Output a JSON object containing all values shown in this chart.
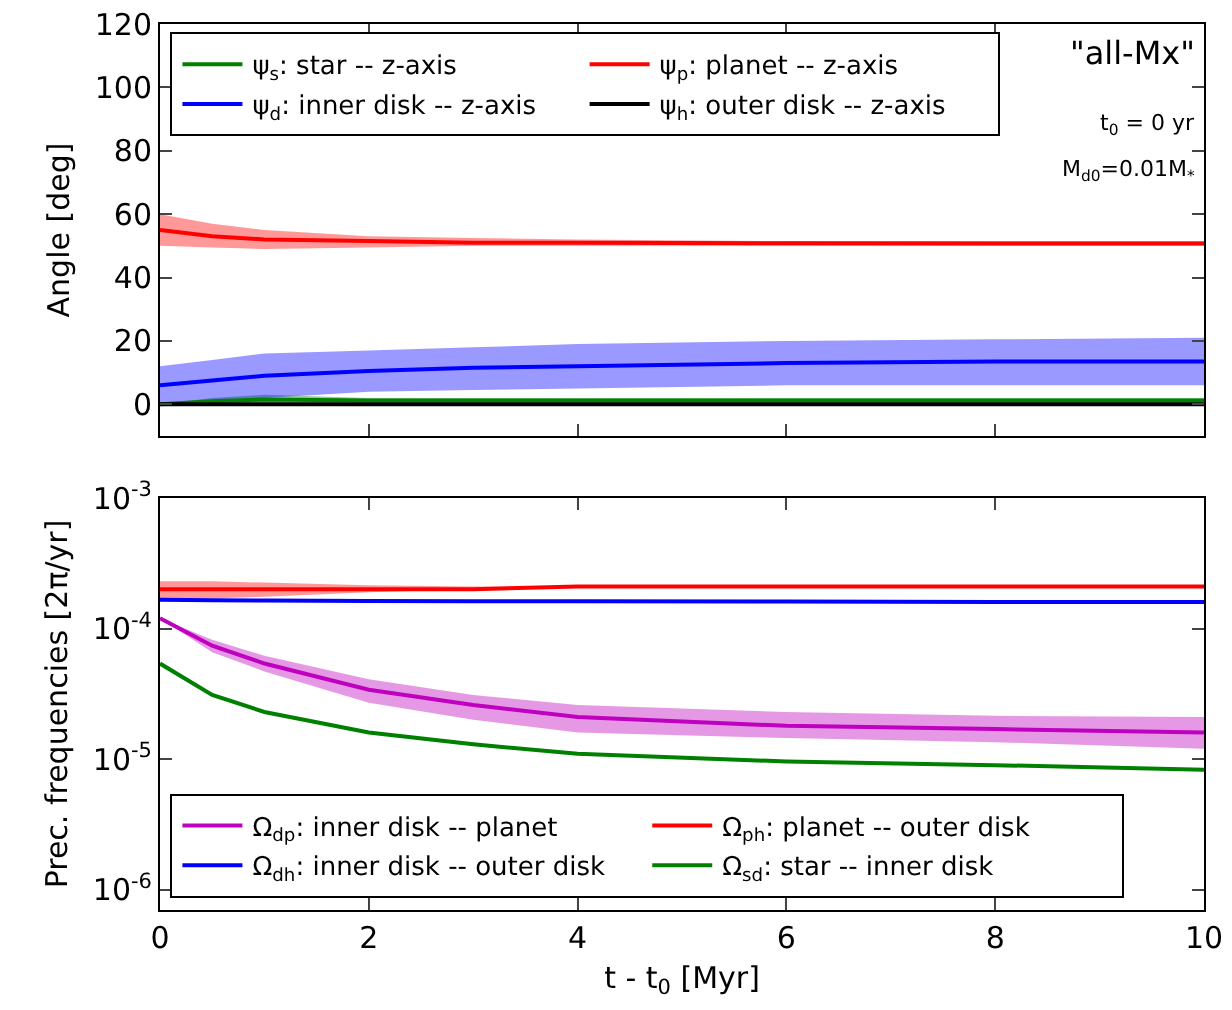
{
  "chart_data": [
    {
      "type": "line",
      "ylabel": "Angle [deg]",
      "x": [
        0,
        0.5,
        1,
        2,
        3,
        4,
        6,
        8,
        10
      ],
      "xlim": [
        0,
        10
      ],
      "xticks": [
        0,
        2,
        4,
        6,
        8,
        10
      ],
      "ylim": [
        -10,
        120
      ],
      "yticks": [
        0,
        20,
        40,
        60,
        80,
        100,
        120
      ],
      "tick_labels": "y",
      "grid": false,
      "legend": "top left",
      "marker": "none",
      "line_style": "solid",
      "annotations": [
        "\"all-Mx\"",
        "t$_{0}$ = 0 yr",
        "M$_{d0}$=0.01M$_{*}$"
      ],
      "series": [
        {
          "name": "ψ$_{s}$: star -- z-axis",
          "color": "#008000",
          "values": [
            0,
            1,
            1.5,
            1.2,
            1.2,
            1.2,
            1.2,
            1.2,
            1.2
          ],
          "lower": [
            0,
            0,
            0.3,
            0.5,
            0.5,
            0.5,
            0.5,
            0.5,
            0.5
          ],
          "upper": [
            0,
            2,
            3,
            2,
            2,
            2,
            2,
            2,
            2
          ]
        },
        {
          "name": "ψ$_{p}$: planet -- z-axis",
          "color": "#ff0000",
          "values": [
            55,
            53,
            52,
            51.5,
            51,
            51,
            50.8,
            50.7,
            50.7
          ],
          "lower": [
            50,
            49.5,
            49,
            49.5,
            50,
            50,
            50,
            50,
            50
          ],
          "upper": [
            60,
            57,
            55,
            53,
            52.5,
            52,
            51.5,
            51.5,
            51.5
          ]
        },
        {
          "name": "ψ$_{d}$: inner disk -- z-axis",
          "color": "#0000ff",
          "values": [
            6,
            7.5,
            9,
            10.5,
            11.5,
            12,
            13,
            13.5,
            13.5
          ],
          "lower": [
            0,
            1,
            2,
            4,
            4.5,
            5,
            6,
            6,
            6
          ],
          "upper": [
            12,
            14,
            16,
            17,
            18,
            19,
            20,
            20.5,
            21
          ]
        },
        {
          "name": "ψ$_{h}$: outer disk -- z-axis",
          "color": "#000000",
          "values": [
            0,
            0,
            0,
            0,
            0,
            0,
            0,
            0,
            0
          ]
        }
      ]
    },
    {
      "type": "line",
      "xlabel": "t - t$_{0}$ [Myr]",
      "ylabel": "Prec. frequencies [2π/yr]",
      "x": [
        0,
        0.5,
        1,
        2,
        3,
        4,
        6,
        8,
        10
      ],
      "xlim": [
        0,
        10
      ],
      "xticks": [
        0,
        2,
        4,
        6,
        8,
        10
      ],
      "log": "y",
      "ylim": [
        7e-07,
        0.001
      ],
      "yticks": [
        {
          "value": 1e-06,
          "label": "10$^{-6}$"
        },
        {
          "value": 1e-05,
          "label": "10$^{-5}$"
        },
        {
          "value": 0.0001,
          "label": "10$^{-4}$"
        },
        {
          "value": 0.001,
          "label": "10$^{-3}$"
        }
      ],
      "grid": false,
      "legend": "bottom",
      "marker": "none",
      "line_style": "solid",
      "series": [
        {
          "name": "Ω$_{dp}$: inner disk -- planet",
          "color": "#bf00bf",
          "values": [
            0.00012,
            7.4e-05,
            5.4e-05,
            3.4e-05,
            2.6e-05,
            2.1e-05,
            1.8e-05,
            1.7e-05,
            1.6e-05
          ],
          "lower": [
            0.00012,
            6.6e-05,
            4.7e-05,
            2.7e-05,
            2e-05,
            1.6e-05,
            1.45e-05,
            1.35e-05,
            1.2e-05
          ],
          "upper": [
            0.00012,
            8.2e-05,
            6.2e-05,
            4.1e-05,
            3.1e-05,
            2.6e-05,
            2.3e-05,
            2.15e-05,
            2.1e-05
          ]
        },
        {
          "name": "Ω$_{ph}$: planet -- outer disk",
          "color": "#ff0000",
          "values": [
            0.0002,
            0.0002,
            0.0002,
            0.0002,
            0.0002,
            0.00021,
            0.00021,
            0.00021,
            0.00021
          ],
          "lower": [
            0.000166,
            0.00017,
            0.000175,
            0.00019,
            0.0002,
            0.00021,
            0.00021,
            0.00021,
            0.00021
          ],
          "upper": [
            0.00023,
            0.00023,
            0.000225,
            0.000215,
            0.00021,
            0.00021,
            0.00021,
            0.00021,
            0.00021
          ]
        },
        {
          "name": "Ω$_{dh}$: inner disk -- outer disk",
          "color": "#0000ff",
          "values": [
            0.000166,
            0.000165,
            0.000164,
            0.000163,
            0.000162,
            0.000162,
            0.000161,
            0.00016,
            0.00016
          ]
        },
        {
          "name": "Ω$_{sd}$: star -- inner disk",
          "color": "#008000",
          "values": [
            5.4e-05,
            3.1e-05,
            2.3e-05,
            1.6e-05,
            1.3e-05,
            1.1e-05,
            9.6e-06,
            9e-06,
            8.3e-06
          ]
        }
      ]
    }
  ]
}
